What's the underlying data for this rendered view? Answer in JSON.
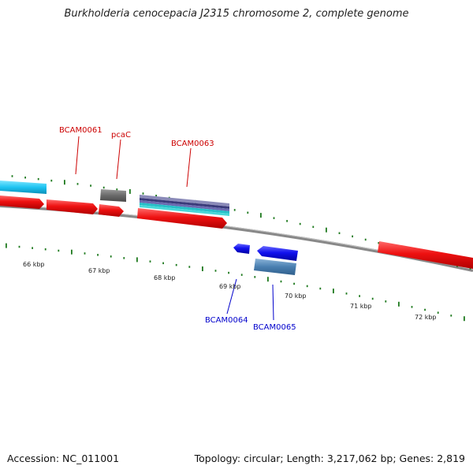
{
  "title": "Burkholderia cenocepacia J2315 chromosome 2, complete genome",
  "footer": {
    "accession": "Accession: NC_011001",
    "stats": "Topology: circular; Length: 3,217,062 bp; Genes: 2,819"
  },
  "colors": {
    "backbone": "#808080",
    "tick": "#1f7a1f",
    "forward_gene": "#ee1111",
    "reverse_gene": "#1111ee",
    "label_forward": "#cc0000",
    "label_reverse": "#0000cc"
  },
  "scale_labels": [
    "66 kbp",
    "67 kbp",
    "68 kbp",
    "69 kbp",
    "70 kbp",
    "71 kbp",
    "72 kbp"
  ],
  "gene_labels": {
    "bcam0061": "BCAM0061",
    "pcac": "pcaC",
    "bcam0063": "BCAM0063",
    "bcam0064": "BCAM0064",
    "bcam0065": "BCAM0065"
  }
}
